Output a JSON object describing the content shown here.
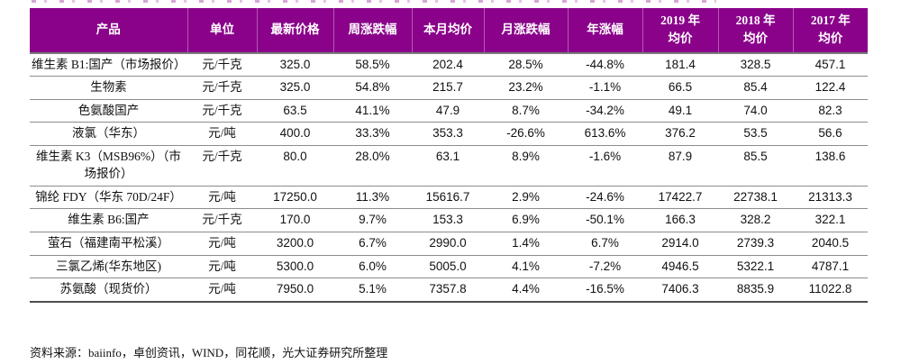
{
  "colors": {
    "header_bg": "#8A018A",
    "header_text": "#FFFFFF",
    "row_border": "#8C8C8C",
    "bottom_border": "#4D4D4D"
  },
  "table": {
    "columns": [
      "产品",
      "单位",
      "最新价格",
      "周涨跌幅",
      "本月均价",
      "月涨跌幅",
      "年涨幅",
      "2019 年\n均价",
      "2018 年\n均价",
      "2017 年\n均价"
    ],
    "rows": [
      {
        "cells": [
          "维生素 B1:国产（市场报价）",
          "元/千克",
          "325.0",
          "58.5%",
          "202.4",
          "28.5%",
          "-44.8%",
          "181.4",
          "328.5",
          "457.1"
        ]
      },
      {
        "cells": [
          "生物素",
          "元/千克",
          "325.0",
          "54.8%",
          "215.7",
          "23.2%",
          "-1.1%",
          "66.5",
          "85.4",
          "122.4"
        ]
      },
      {
        "cells": [
          "色氨酸国产",
          "元/千克",
          "63.5",
          "41.1%",
          "47.9",
          "8.7%",
          "-34.2%",
          "49.1",
          "74.0",
          "82.3"
        ]
      },
      {
        "cells": [
          "液氯（华东）",
          "元/吨",
          "400.0",
          "33.3%",
          "353.3",
          "-26.6%",
          "613.6%",
          "376.2",
          "53.5",
          "56.6"
        ]
      },
      {
        "cells": [
          "维生素 K3（MSB96%）（市场报价）",
          "元/千克",
          "80.0",
          "28.0%",
          "63.1",
          "8.9%",
          "-1.6%",
          "87.9",
          "85.5",
          "138.6"
        ]
      },
      {
        "cells": [
          "锦纶 FDY（华东 70D/24F）",
          "元/吨",
          "17250.0",
          "11.3%",
          "15616.7",
          "2.9%",
          "-24.6%",
          "17422.7",
          "22738.1",
          "21313.3"
        ]
      },
      {
        "cells": [
          "维生素 B6:国产",
          "元/千克",
          "170.0",
          "9.7%",
          "153.3",
          "6.9%",
          "-50.1%",
          "166.3",
          "328.2",
          "322.1"
        ]
      },
      {
        "cells": [
          "萤石（福建南平松溪）",
          "元/吨",
          "3200.0",
          "6.7%",
          "2990.0",
          "1.4%",
          "6.7%",
          "2914.0",
          "2739.3",
          "2040.5"
        ]
      },
      {
        "cells": [
          "三氯乙烯(华东地区)",
          "元/吨",
          "5300.0",
          "6.0%",
          "5005.0",
          "4.1%",
          "-7.2%",
          "4946.5",
          "5322.1",
          "4787.1"
        ]
      },
      {
        "cells": [
          "苏氨酸（现货价）",
          "元/吨",
          "7950.0",
          "5.1%",
          "7357.8",
          "4.4%",
          "-16.5%",
          "7406.3",
          "8835.9",
          "11022.8"
        ]
      }
    ]
  },
  "footer": {
    "source": "资料来源：baiinfo，卓创资讯，WIND，同花顺，光大证券研究所整理"
  }
}
